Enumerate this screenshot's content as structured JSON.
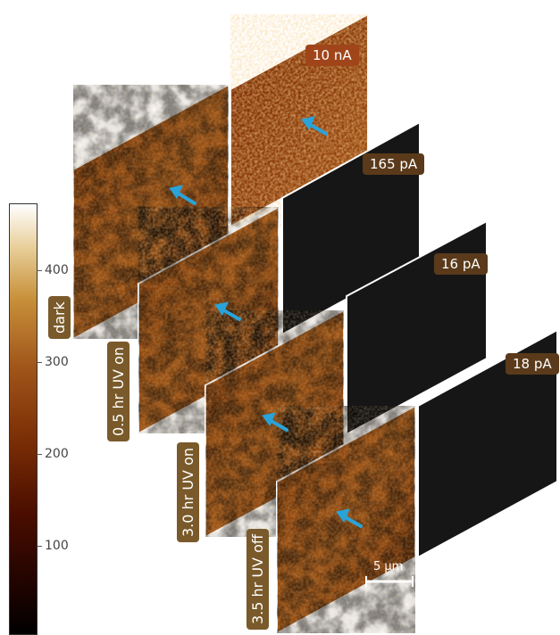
{
  "colorbar": {
    "ticks": [
      "100",
      "200",
      "300",
      "400"
    ],
    "label": "dark"
  },
  "panels": [
    {
      "condition": "dark",
      "current": "10 nA"
    },
    {
      "condition": "0.5 hr UV on",
      "current": "165 pA"
    },
    {
      "condition": "3.0 hr UV on",
      "current": "16 pA"
    },
    {
      "condition": "3.5 hr UV off",
      "current": "18 pA"
    }
  ],
  "scale_bar": "5 µm",
  "colors": {
    "arrow": "#2aa3d8",
    "tag": "#7a5a2a",
    "current_tag": "#5a3a1a",
    "dark_panel": "#1a1a1a"
  }
}
